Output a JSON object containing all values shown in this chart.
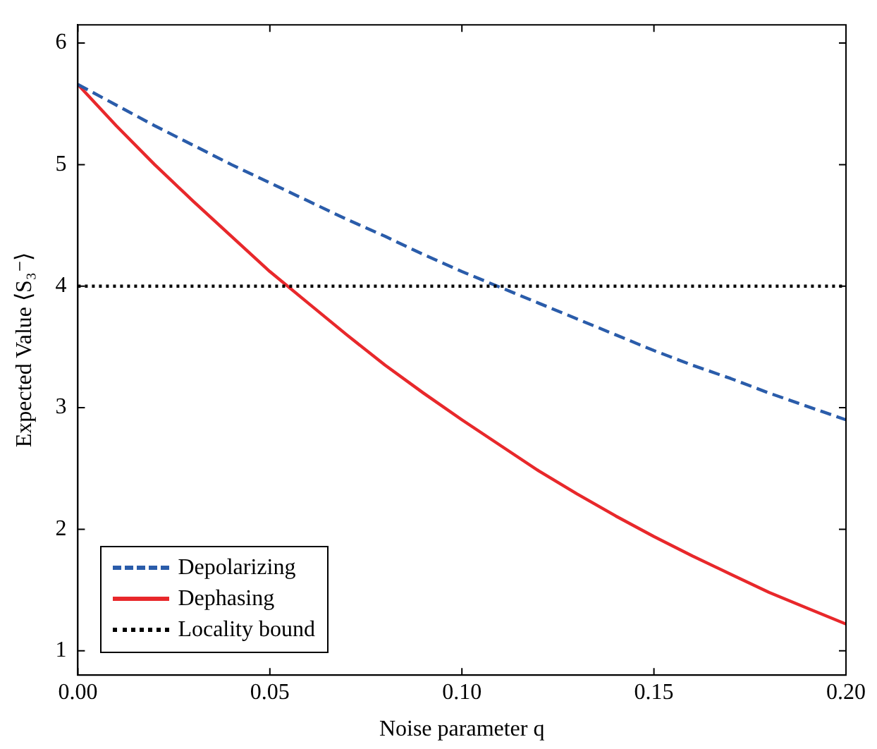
{
  "chart_data": {
    "type": "line",
    "xlabel": "Noise parameter q",
    "ylabel": "Expected Value ⟨S₃⁻⟩",
    "x": [
      0,
      0.01,
      0.02,
      0.03,
      0.04,
      0.05,
      0.06,
      0.07,
      0.08,
      0.09,
      0.1,
      0.11,
      0.12,
      0.13,
      0.14,
      0.15,
      0.16,
      0.17,
      0.18,
      0.19,
      0.2
    ],
    "series": [
      {
        "name": "Depolarizing",
        "color": "#2a5caa",
        "line_style": "dashed",
        "values": [
          5.66,
          5.49,
          5.32,
          5.16,
          5.0,
          4.85,
          4.7,
          4.55,
          4.41,
          4.26,
          4.12,
          3.99,
          3.86,
          3.73,
          3.6,
          3.47,
          3.35,
          3.24,
          3.12,
          3.01,
          2.9
        ]
      },
      {
        "name": "Dephasing",
        "color": "#e8282b",
        "line_style": "solid",
        "values": [
          5.66,
          5.32,
          5.0,
          4.7,
          4.41,
          4.12,
          3.86,
          3.6,
          3.35,
          3.12,
          2.9,
          2.69,
          2.48,
          2.29,
          2.11,
          1.94,
          1.78,
          1.63,
          1.48,
          1.35,
          1.22
        ]
      }
    ],
    "ref_lines": [
      {
        "axis": "y",
        "value": 4,
        "label": "Locality bound",
        "color": "#000000",
        "line_style": "dotted"
      }
    ],
    "xlim": [
      0,
      0.2
    ],
    "xticks": [
      {
        "value": 0,
        "label": "0.00"
      },
      {
        "value": 0.05,
        "label": "0.05"
      },
      {
        "value": 0.1,
        "label": "0.10"
      },
      {
        "value": 0.15,
        "label": "0.15"
      },
      {
        "value": 0.2,
        "label": "0.20"
      }
    ],
    "ylim": [
      0.8,
      6.15
    ],
    "yticks": [
      1,
      2,
      3,
      4,
      5,
      6
    ],
    "grid": false,
    "legend": "bottom left",
    "marker": "none"
  }
}
